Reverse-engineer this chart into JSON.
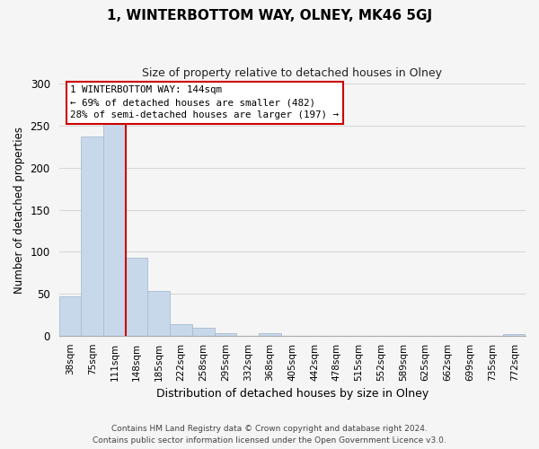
{
  "title": "1, WINTERBOTTOM WAY, OLNEY, MK46 5GJ",
  "subtitle": "Size of property relative to detached houses in Olney",
  "xlabel": "Distribution of detached houses by size in Olney",
  "ylabel": "Number of detached properties",
  "footer_line1": "Contains HM Land Registry data © Crown copyright and database right 2024.",
  "footer_line2": "Contains public sector information licensed under the Open Government Licence v3.0.",
  "bar_labels": [
    "38sqm",
    "75sqm",
    "111sqm",
    "148sqm",
    "185sqm",
    "222sqm",
    "258sqm",
    "295sqm",
    "332sqm",
    "368sqm",
    "405sqm",
    "442sqm",
    "478sqm",
    "515sqm",
    "552sqm",
    "589sqm",
    "625sqm",
    "662sqm",
    "699sqm",
    "735sqm",
    "772sqm"
  ],
  "bar_values": [
    47,
    237,
    252,
    93,
    53,
    14,
    9,
    3,
    0,
    3,
    0,
    0,
    0,
    0,
    0,
    0,
    0,
    0,
    0,
    0,
    2
  ],
  "bar_color": "#c8d8eb",
  "bar_edge_color": "#a8bcd0",
  "highlight_line_color": "#cc0000",
  "annotation_line1": "1 WINTERBOTTOM WAY: 144sqm",
  "annotation_line2": "← 69% of detached houses are smaller (482)",
  "annotation_line3": "28% of semi-detached houses are larger (197) →",
  "annotation_box_color": "#ffffff",
  "annotation_box_edge": "#cc0000",
  "ylim": [
    0,
    300
  ],
  "yticks": [
    0,
    50,
    100,
    150,
    200,
    250,
    300
  ],
  "bg_color": "#f5f5f5",
  "grid_color": "#d8d8d8"
}
